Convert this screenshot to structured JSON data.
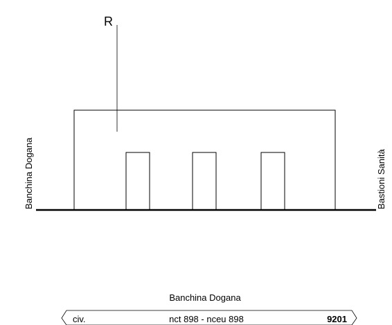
{
  "elevation": {
    "marker_label": "R",
    "left_side_label": "Banchina Dogana",
    "right_side_label": "Bastioni Sanità"
  },
  "footer": {
    "street_name": "Banchina Dogana",
    "civ_label": "civ.",
    "cadastral_ref": "nct 898 - nceu 898",
    "number": "9201"
  }
}
